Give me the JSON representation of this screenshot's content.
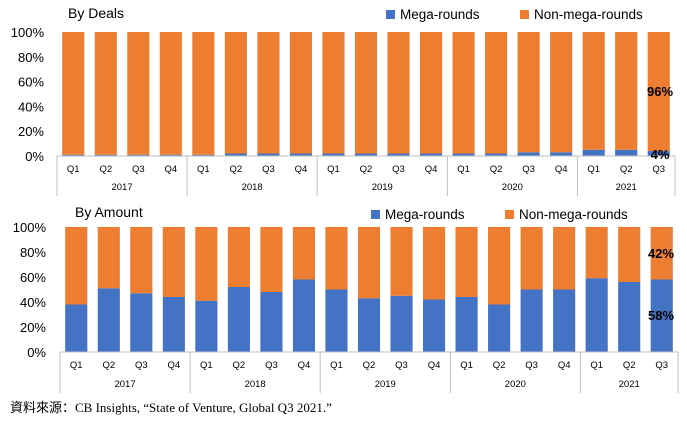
{
  "colors": {
    "mega": "#4472C4",
    "non_mega": "#ED7D31",
    "axis": "#BFBFBF"
  },
  "chart_data": [
    {
      "type": "bar",
      "stacked": true,
      "title": "By Deals",
      "categories": [
        "Q1",
        "Q2",
        "Q3",
        "Q4",
        "Q1",
        "Q2",
        "Q3",
        "Q4",
        "Q1",
        "Q2",
        "Q3",
        "Q4",
        "Q1",
        "Q2",
        "Q3",
        "Q4",
        "Q1",
        "Q2",
        "Q3"
      ],
      "year_groups": [
        {
          "label": "2017",
          "count": 4
        },
        {
          "label": "2018",
          "count": 4
        },
        {
          "label": "2019",
          "count": 4
        },
        {
          "label": "2020",
          "count": 4
        },
        {
          "label": "2021",
          "count": 3
        }
      ],
      "series": [
        {
          "name": "Mega-rounds",
          "values": [
            1,
            1,
            1,
            1,
            1,
            2,
            2,
            2,
            2,
            2,
            2,
            2,
            2,
            2,
            3,
            3,
            5,
            5,
            4
          ]
        },
        {
          "name": "Non-mega-rounds",
          "values": [
            99,
            99,
            99,
            99,
            99,
            98,
            98,
            98,
            98,
            98,
            98,
            98,
            98,
            98,
            97,
            97,
            95,
            95,
            96
          ]
        }
      ],
      "yticks": [
        "0%",
        "20%",
        "40%",
        "60%",
        "80%",
        "100%"
      ],
      "ylim": [
        0,
        100
      ],
      "legend": "top-right",
      "annotations": {
        "non_mega": "96%",
        "mega": "4%"
      }
    },
    {
      "type": "bar",
      "stacked": true,
      "title": "By Amount",
      "categories": [
        "Q1",
        "Q2",
        "Q3",
        "Q4",
        "Q1",
        "Q2",
        "Q3",
        "Q4",
        "Q1",
        "Q2",
        "Q3",
        "Q4",
        "Q1",
        "Q2",
        "Q3",
        "Q4",
        "Q1",
        "Q2",
        "Q3"
      ],
      "year_groups": [
        {
          "label": "2017",
          "count": 4
        },
        {
          "label": "2018",
          "count": 4
        },
        {
          "label": "2019",
          "count": 4
        },
        {
          "label": "2020",
          "count": 4
        },
        {
          "label": "2021",
          "count": 3
        }
      ],
      "series": [
        {
          "name": "Mega-rounds",
          "values": [
            38,
            51,
            47,
            44,
            41,
            52,
            48,
            58,
            50,
            43,
            45,
            42,
            44,
            38,
            50,
            50,
            59,
            56,
            58
          ]
        },
        {
          "name": "Non-mega-rounds",
          "values": [
            62,
            49,
            53,
            56,
            59,
            48,
            52,
            42,
            50,
            57,
            55,
            58,
            56,
            62,
            50,
            50,
            41,
            44,
            42
          ]
        }
      ],
      "yticks": [
        "0%",
        "20%",
        "40%",
        "60%",
        "80%",
        "100%"
      ],
      "ylim": [
        0,
        100
      ],
      "legend": "top-right",
      "annotations": {
        "non_mega": "42%",
        "mega": "58%"
      }
    }
  ],
  "source": "資料來源：CB Insights, “State of Venture, Global Q3 2021.”"
}
